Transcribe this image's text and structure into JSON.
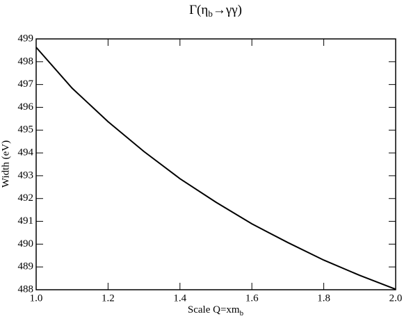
{
  "chart_data": {
    "type": "line",
    "title": [
      "Γ(η",
      "b",
      "→γγ)"
    ],
    "x_label": [
      "Scale Q=xm",
      "b"
    ],
    "y_label": "Width (eV)",
    "x": [
      1.0,
      1.1,
      1.2,
      1.3,
      1.4,
      1.5,
      1.6,
      1.7,
      1.8,
      1.9,
      2.0
    ],
    "series": [
      {
        "color": "#000000",
        "values": [
          498.63,
          496.84,
          495.37,
          494.06,
          492.87,
          491.84,
          490.89,
          490.07,
          489.3,
          488.63,
          488.02
        ]
      }
    ],
    "xlim": [
      1.0,
      2.0
    ],
    "xticks": [
      {
        "value": 1,
        "label": "1.0"
      },
      1.2,
      1.4,
      1.6,
      1.8,
      {
        "value": 2,
        "label": "2.0"
      }
    ],
    "ylim": [
      488,
      499
    ],
    "yticks": [
      488,
      489,
      490,
      491,
      492,
      493,
      494,
      495,
      496,
      497,
      498,
      499
    ]
  }
}
